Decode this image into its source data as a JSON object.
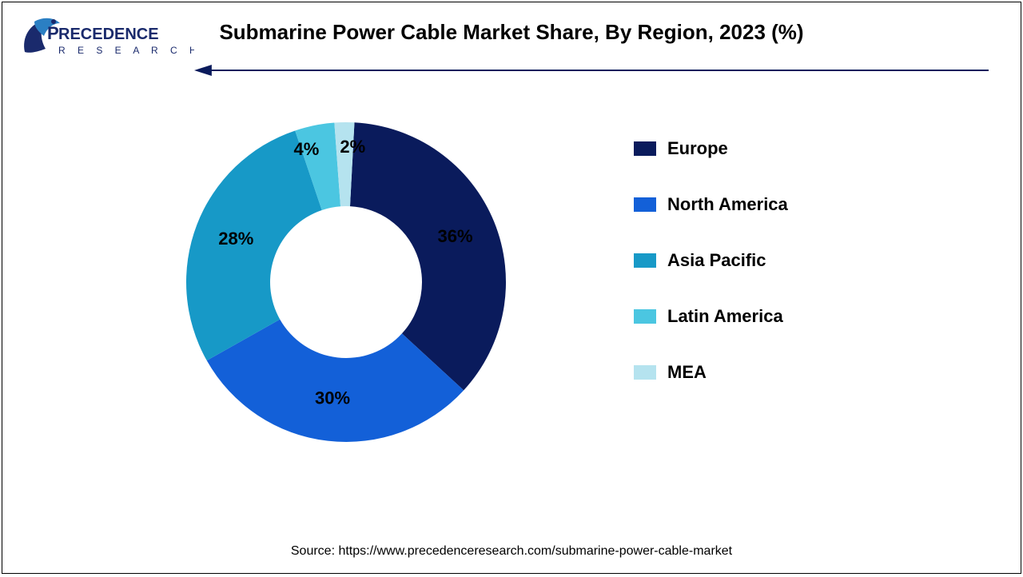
{
  "title": {
    "text": "Submarine Power Cable Market Share, By Region, 2023 (%)",
    "fontsize": 26,
    "fontweight": 700,
    "color": "#000000"
  },
  "logo": {
    "primary_text": "RECEDENCE",
    "secondary_text": "R E S E A R C H",
    "accent_color": "#1a2a6c",
    "text_color": "#1a2a6c"
  },
  "chart": {
    "type": "donut",
    "outer_radius": 200,
    "inner_radius": 95,
    "background_color": "#ffffff",
    "label_fontsize": 22,
    "label_fontweight": 700,
    "label_color": "#000000",
    "slices": [
      {
        "label": "Europe",
        "value": 36,
        "color": "#0a1b5c",
        "display": "36%"
      },
      {
        "label": "North America",
        "value": 30,
        "color": "#1360d8",
        "display": "30%"
      },
      {
        "label": "Asia Pacific",
        "value": 28,
        "color": "#1799c7",
        "display": "28%"
      },
      {
        "label": "Latin America",
        "value": 4,
        "color": "#4bc6e1",
        "display": "4%"
      },
      {
        "label": "MEA",
        "value": 2,
        "color": "#b5e3ef",
        "display": "2%"
      }
    ],
    "start_angle_deg": 3
  },
  "legend": {
    "fontsize": 22,
    "fontweight": 700,
    "color": "#000000",
    "swatch_w": 28,
    "swatch_h": 18,
    "items": [
      {
        "label": "Europe",
        "color": "#0a1b5c"
      },
      {
        "label": "North America",
        "color": "#1360d8"
      },
      {
        "label": "Asia Pacific",
        "color": "#1799c7"
      },
      {
        "label": "Latin America",
        "color": "#4bc6e1"
      },
      {
        "label": "MEA",
        "color": "#b5e3ef"
      }
    ]
  },
  "arrow": {
    "color": "#0a1b5c",
    "width": 2
  },
  "source": {
    "text": "Source: https://www.precedenceresearch.com/submarine-power-cable-market",
    "fontsize": 16,
    "color": "#000000"
  }
}
